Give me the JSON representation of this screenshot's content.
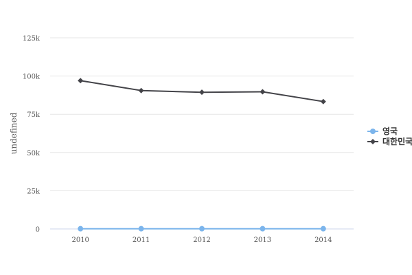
{
  "chart_data": {
    "type": "line",
    "title": "",
    "xlabel": "",
    "ylabel": "undefined",
    "categories": [
      "2010",
      "2011",
      "2012",
      "2013",
      "2014"
    ],
    "ylim": [
      0,
      125000
    ],
    "yticks": [
      0,
      25000,
      50000,
      75000,
      100000,
      125000
    ],
    "ytick_labels": [
      "0",
      "25k",
      "50k",
      "75k",
      "100k",
      "125k"
    ],
    "grid": true,
    "legend_position": "right",
    "series": [
      {
        "name": "영국",
        "color": "#7cb5ec",
        "marker": "circle",
        "values": [
          150,
          150,
          150,
          150,
          150
        ]
      },
      {
        "name": "대한민국",
        "color": "#434348",
        "marker": "diamond",
        "values": [
          97000,
          90500,
          89400,
          89700,
          83300
        ]
      }
    ]
  }
}
